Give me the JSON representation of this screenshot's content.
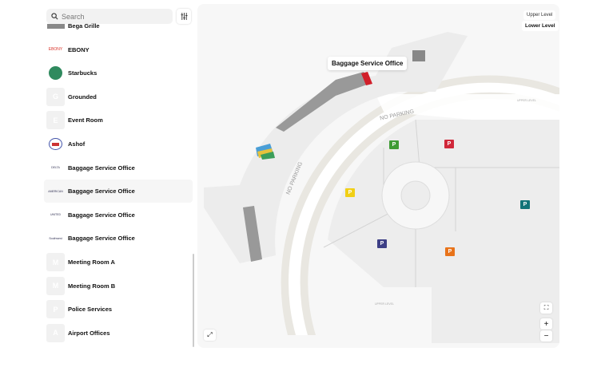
{
  "search": {
    "placeholder": "Search",
    "icon": "search-icon"
  },
  "filter": {
    "icon": "sliders-icon"
  },
  "list": [
    {
      "label": "Bega Grille",
      "logo": "image"
    },
    {
      "label": "EBONY",
      "logo": "EBONY",
      "logo_color": "#d9342b"
    },
    {
      "label": "Starbucks",
      "logo": "starbucks"
    },
    {
      "label": "Grounded",
      "logo": "G"
    },
    {
      "label": "Event Room",
      "logo": "E"
    },
    {
      "label": "Ashof",
      "logo": "ashof"
    },
    {
      "label": "Baggage Service Office",
      "logo": "DELTA"
    },
    {
      "label": "Baggage Service Office",
      "logo": "AMERICAN",
      "selected": true
    },
    {
      "label": "Baggage Service Office",
      "logo": "UNITED"
    },
    {
      "label": "Baggage Service Office",
      "logo": "Southwest"
    },
    {
      "label": "Meeting Room A",
      "logo": "M"
    },
    {
      "label": "Meeting Room B",
      "logo": "M"
    },
    {
      "label": "Police Services",
      "logo": "P"
    },
    {
      "label": "Airport Offices",
      "logo": "A"
    }
  ],
  "map": {
    "levels": {
      "upper": "Upper Level",
      "lower": "Lower Level",
      "active": "Lower Level"
    },
    "tooltip": "Baggage Service Office",
    "no_parking_1": "NO PARKING",
    "no_parking_2": "NO PARKING",
    "upper_level_1": "UPPER LEVEL",
    "upper_level_2": "UPPER LEVEL",
    "parking_label": "P",
    "parking_colors": [
      "#3f9b35",
      "#d0283a",
      "#f1cf15",
      "#3d3f86",
      "#e8731a",
      "#127478"
    ],
    "highlight_color": "#d11f2a",
    "zoom_in": "+",
    "zoom_out": "−"
  }
}
